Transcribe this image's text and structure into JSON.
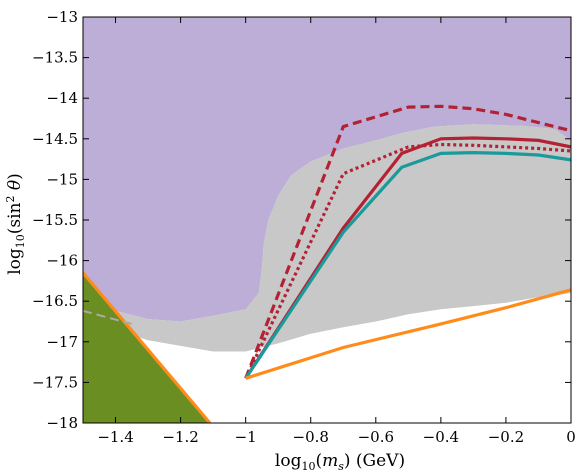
{
  "chart_data": {
    "type": "line",
    "title": "",
    "xlabel": "log10(ms) (GeV)",
    "ylabel": "log10(sin²θ)",
    "xlim": [
      -1.5,
      0
    ],
    "ylim": [
      -18,
      -13
    ],
    "xticks": [
      -1.4,
      -1.2,
      -1,
      -0.8,
      -0.6,
      -0.4,
      -0.2,
      0
    ],
    "yticks": [
      -13,
      -13.5,
      -14,
      -14.5,
      -15,
      -15.5,
      -16,
      -16.5,
      -17,
      -17.5,
      -18
    ],
    "grid": false,
    "legend": "none",
    "regions": [
      {
        "color": "#bcaed6",
        "points": [
          [
            -1.5,
            -13
          ],
          [
            0,
            -13
          ],
          [
            0,
            -14.52
          ],
          [
            -0.05,
            -14.38
          ],
          [
            -0.15,
            -14.34
          ],
          [
            -0.3,
            -14.32
          ],
          [
            -0.42,
            -14.35
          ],
          [
            -0.52,
            -14.43
          ],
          [
            -0.6,
            -14.52
          ],
          [
            -0.7,
            -14.62
          ],
          [
            -0.8,
            -14.78
          ],
          [
            -0.86,
            -14.95
          ],
          [
            -0.9,
            -15.2
          ],
          [
            -0.93,
            -15.5
          ],
          [
            -0.945,
            -15.8
          ],
          [
            -0.95,
            -16.1
          ],
          [
            -0.96,
            -16.4
          ],
          [
            -1.0,
            -16.6
          ],
          [
            -1.1,
            -16.68
          ],
          [
            -1.2,
            -16.75
          ],
          [
            -1.3,
            -16.72
          ],
          [
            -1.4,
            -16.62
          ],
          [
            -1.5,
            -16.56
          ]
        ]
      },
      {
        "color": "#c8c8c8",
        "points": [
          [
            0,
            -14.52
          ],
          [
            -0.05,
            -14.38
          ],
          [
            -0.15,
            -14.34
          ],
          [
            -0.3,
            -14.32
          ],
          [
            -0.42,
            -14.35
          ],
          [
            -0.52,
            -14.43
          ],
          [
            -0.6,
            -14.52
          ],
          [
            -0.7,
            -14.62
          ],
          [
            -0.8,
            -14.78
          ],
          [
            -0.86,
            -14.95
          ],
          [
            -0.9,
            -15.2
          ],
          [
            -0.93,
            -15.5
          ],
          [
            -0.945,
            -15.8
          ],
          [
            -0.95,
            -16.1
          ],
          [
            -0.96,
            -16.4
          ],
          [
            -1.0,
            -16.6
          ],
          [
            -1.1,
            -16.68
          ],
          [
            -1.2,
            -16.75
          ],
          [
            -1.3,
            -16.72
          ],
          [
            -1.4,
            -16.62
          ],
          [
            -1.5,
            -16.56
          ],
          [
            -1.5,
            -16.7
          ],
          [
            -1.4,
            -16.85
          ],
          [
            -1.3,
            -16.98
          ],
          [
            -1.2,
            -17.05
          ],
          [
            -1.1,
            -17.12
          ],
          [
            -1.0,
            -17.12
          ],
          [
            -0.9,
            -17.02
          ],
          [
            -0.8,
            -16.9
          ],
          [
            -0.7,
            -16.82
          ],
          [
            -0.6,
            -16.75
          ],
          [
            -0.5,
            -16.66
          ],
          [
            -0.4,
            -16.6
          ],
          [
            -0.3,
            -16.56
          ],
          [
            -0.2,
            -16.52
          ],
          [
            -0.1,
            -16.45
          ],
          [
            0,
            -16.4
          ]
        ]
      },
      {
        "color": "#6b8e23",
        "points": [
          [
            -1.5,
            -16.15
          ],
          [
            -1.5,
            -18
          ],
          [
            -1.11,
            -18
          ]
        ]
      }
    ],
    "series": [
      {
        "color": "#b22234",
        "dash": "dashed",
        "x": [
          -1,
          -0.7,
          -0.5,
          -0.4,
          -0.3,
          -0.2,
          -0.1,
          0
        ],
        "y": [
          -17.45,
          -14.35,
          -14.11,
          -14.1,
          -14.13,
          -14.2,
          -14.3,
          -14.4
        ]
      },
      {
        "color": "#b22234",
        "dash": "dotted",
        "x": [
          -1,
          -0.7,
          -0.5,
          -0.4,
          -0.3,
          -0.2,
          -0.1,
          0
        ],
        "y": [
          -17.45,
          -14.93,
          -14.6,
          -14.57,
          -14.58,
          -14.6,
          -14.62,
          -14.65
        ]
      },
      {
        "color": "#b22234",
        "dash": "solid",
        "x": [
          -1,
          -0.7,
          -0.52,
          -0.4,
          -0.3,
          -0.2,
          -0.1,
          0
        ],
        "y": [
          -17.45,
          -15.6,
          -14.68,
          -14.5,
          -14.49,
          -14.5,
          -14.52,
          -14.6
        ]
      },
      {
        "color": "#1a9a9a",
        "dash": "solid",
        "x": [
          -1,
          -0.7,
          -0.52,
          -0.4,
          -0.3,
          -0.2,
          -0.1,
          0
        ],
        "y": [
          -17.45,
          -15.65,
          -14.85,
          -14.68,
          -14.67,
          -14.68,
          -14.7,
          -14.76
        ]
      },
      {
        "color": "#ff8c1a",
        "dash": "solid",
        "x": [
          -1,
          -0.7,
          -0.4,
          -0.2,
          0
        ],
        "y": [
          -17.45,
          -17.07,
          -16.78,
          -16.58,
          -16.36
        ]
      },
      {
        "color": "#ff8c1a",
        "dash": "solid",
        "x": [
          -1.5,
          -1.11
        ],
        "y": [
          -16.15,
          -18
        ]
      },
      {
        "color": "#aaaaaa",
        "dash": "dashed",
        "x": [
          -1.5,
          -1.35
        ],
        "y": [
          -16.62,
          -16.78
        ]
      }
    ]
  }
}
